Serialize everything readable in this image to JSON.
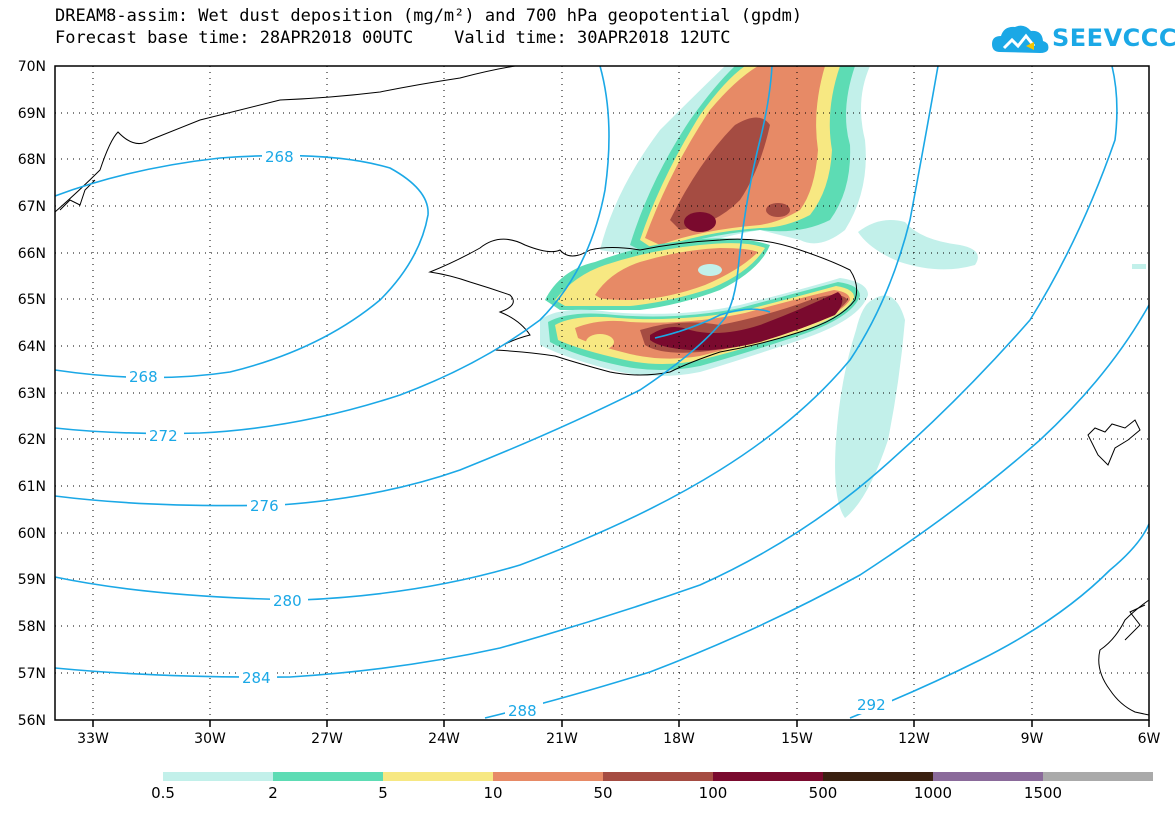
{
  "title": {
    "line1": "DREAM8-assim: Wet dust deposition (mg/m²) and 700 hPa geopotential (gpdm)",
    "line2": "Forecast base time: 28APR2018 00UTC    Valid time: 30APR2018 12UTC"
  },
  "logo": {
    "text": "SEEVCCC",
    "icon": "cloud-icon",
    "color": "#1ba8e6"
  },
  "axes": {
    "lat_labels": [
      "70N",
      "69N",
      "68N",
      "67N",
      "66N",
      "65N",
      "64N",
      "63N",
      "62N",
      "61N",
      "60N",
      "59N",
      "58N",
      "57N",
      "56N"
    ],
    "lon_labels": [
      "33W",
      "30W",
      "27W",
      "24W",
      "21W",
      "18W",
      "15W",
      "12W",
      "9W",
      "6W"
    ]
  },
  "contours": {
    "color": "#1ba8e6",
    "labels": [
      "268",
      "268",
      "272",
      "276",
      "280",
      "284",
      "288",
      "292"
    ]
  },
  "legend": {
    "colors": [
      "#c2f0ea",
      "#5ddcb4",
      "#f7e882",
      "#e78a66",
      "#a54c42",
      "#7a0a2e",
      "#3a2010",
      "#8a6a9a",
      "#aaaaaa"
    ],
    "labels": [
      "0.5",
      "2",
      "5",
      "10",
      "50",
      "100",
      "500",
      "1000",
      "1500"
    ]
  }
}
